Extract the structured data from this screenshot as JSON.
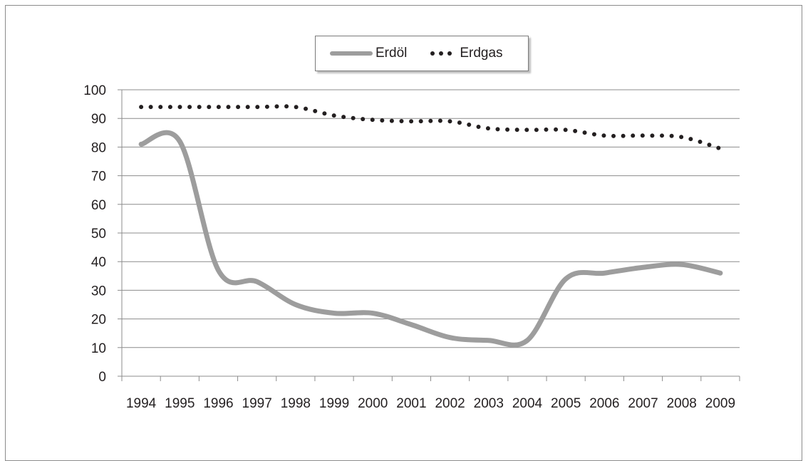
{
  "chart_data": {
    "type": "line",
    "title": "",
    "xlabel": "",
    "ylabel": "",
    "x": [
      "1994",
      "1995",
      "1996",
      "1997",
      "1998",
      "1999",
      "2000",
      "2001",
      "2002",
      "2003",
      "2004",
      "2005",
      "2006",
      "2007",
      "2008",
      "2009"
    ],
    "ylim": [
      0,
      100
    ],
    "yticks": [
      0,
      10,
      20,
      30,
      40,
      50,
      60,
      70,
      80,
      90,
      100
    ],
    "grid": true,
    "legend_position": "top-center",
    "series": [
      {
        "name": "Erdöl",
        "style": "solid",
        "color": "#9d9d9d",
        "values": [
          81,
          82,
          37,
          33,
          25,
          22,
          22,
          18,
          13.5,
          12.5,
          12.5,
          34,
          36,
          38,
          39,
          36
        ]
      },
      {
        "name": "Erdgas",
        "style": "dotted",
        "color": "#231f20",
        "values": [
          94,
          94,
          94,
          94,
          94,
          91,
          89.5,
          89,
          89,
          86.5,
          86,
          86,
          84,
          84,
          83.5,
          79.5
        ]
      }
    ]
  }
}
